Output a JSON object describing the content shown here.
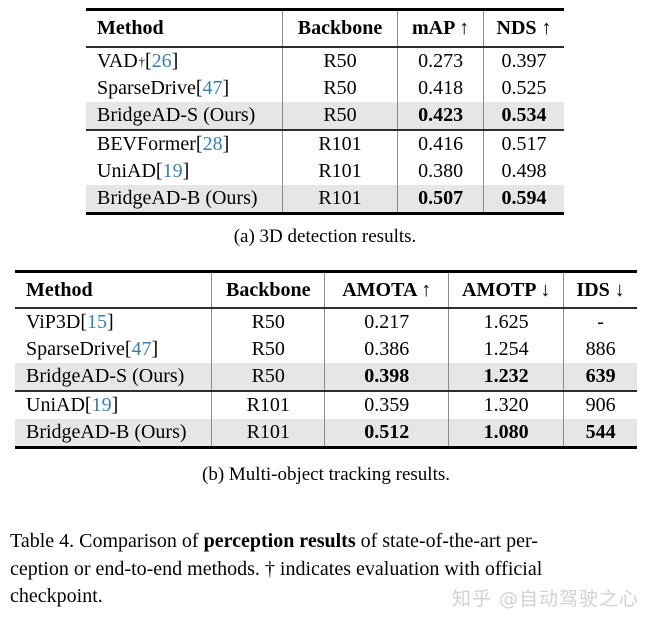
{
  "colors": {
    "citation": "#3580b3",
    "highlight_row": "#e6e6e6",
    "rule": "#000000",
    "divider": "#8c8c8c",
    "watermark": "#d2d2d2"
  },
  "tables": [
    {
      "caption": "(a) 3D detection results.",
      "columns": [
        "Method",
        "Backbone",
        "mAP ↑",
        "NDS ↑"
      ],
      "col_widths": [
        "41.2%",
        "24.1%",
        "18.0%",
        "16.7%"
      ],
      "groups": [
        {
          "rows": [
            {
              "name": "VAD",
              "sup": "†",
              "cite": "26",
              "cells": [
                "R50",
                "0.273",
                "0.397"
              ],
              "highlight": false,
              "bold_values": false
            },
            {
              "name": "SparseDrive",
              "sup": "",
              "cite": "47",
              "cells": [
                "R50",
                "0.418",
                "0.525"
              ],
              "highlight": false,
              "bold_values": false
            },
            {
              "name": "BridgeAD-S (Ours)",
              "sup": "",
              "cite": "",
              "cells": [
                "R50",
                "0.423",
                "0.534"
              ],
              "highlight": true,
              "bold_values": true
            }
          ]
        },
        {
          "rows": [
            {
              "name": "BEVFormer",
              "sup": "",
              "cite": "28",
              "cells": [
                "R101",
                "0.416",
                "0.517"
              ],
              "highlight": false,
              "bold_values": false
            },
            {
              "name": "UniAD",
              "sup": "",
              "cite": "19",
              "cells": [
                "R101",
                "0.380",
                "0.498"
              ],
              "highlight": false,
              "bold_values": false
            },
            {
              "name": "BridgeAD-B (Ours)",
              "sup": "",
              "cite": "",
              "cells": [
                "R101",
                "0.507",
                "0.594"
              ],
              "highlight": true,
              "bold_values": true
            }
          ]
        }
      ]
    },
    {
      "caption": "(b) Multi-object tracking results.",
      "columns": [
        "Method",
        "Backbone",
        "AMOTA ↑",
        "AMOTP ↓",
        "IDS ↓"
      ],
      "col_widths": [
        "31.7%",
        "18.2%",
        "19.9%",
        "18.5%",
        "11.7%"
      ],
      "groups": [
        {
          "rows": [
            {
              "name": "ViP3D",
              "sup": "",
              "cite": "15",
              "cells": [
                "R50",
                "0.217",
                "1.625",
                "-"
              ],
              "highlight": false,
              "bold_values": false
            },
            {
              "name": "SparseDrive",
              "sup": "",
              "cite": "47",
              "cells": [
                "R50",
                "0.386",
                "1.254",
                "886"
              ],
              "highlight": false,
              "bold_values": false
            },
            {
              "name": "BridgeAD-S (Ours)",
              "sup": "",
              "cite": "",
              "cells": [
                "R50",
                "0.398",
                "1.232",
                "639"
              ],
              "highlight": true,
              "bold_values": true
            }
          ]
        },
        {
          "rows": [
            {
              "name": "UniAD",
              "sup": "",
              "cite": "19",
              "cells": [
                "R101",
                "0.359",
                "1.320",
                "906"
              ],
              "highlight": false,
              "bold_values": false
            },
            {
              "name": "BridgeAD-B (Ours)",
              "sup": "",
              "cite": "",
              "cells": [
                "R101",
                "0.512",
                "1.080",
                "544"
              ],
              "highlight": true,
              "bold_values": true
            }
          ]
        }
      ]
    }
  ],
  "main_caption": {
    "lines": [
      [
        {
          "text": "Table 4. Comparison of ",
          "bold": false
        },
        {
          "text": "perception results",
          "bold": true
        },
        {
          "text": " of state-of-the-art per-",
          "bold": false
        }
      ],
      [
        {
          "text": "ception or end-to-end methods. † indicates evaluation with official",
          "bold": false
        }
      ],
      [
        {
          "text": "checkpoint.",
          "bold": false
        }
      ]
    ]
  },
  "watermark": {
    "text": "知乎 @自动驾驶之心"
  }
}
